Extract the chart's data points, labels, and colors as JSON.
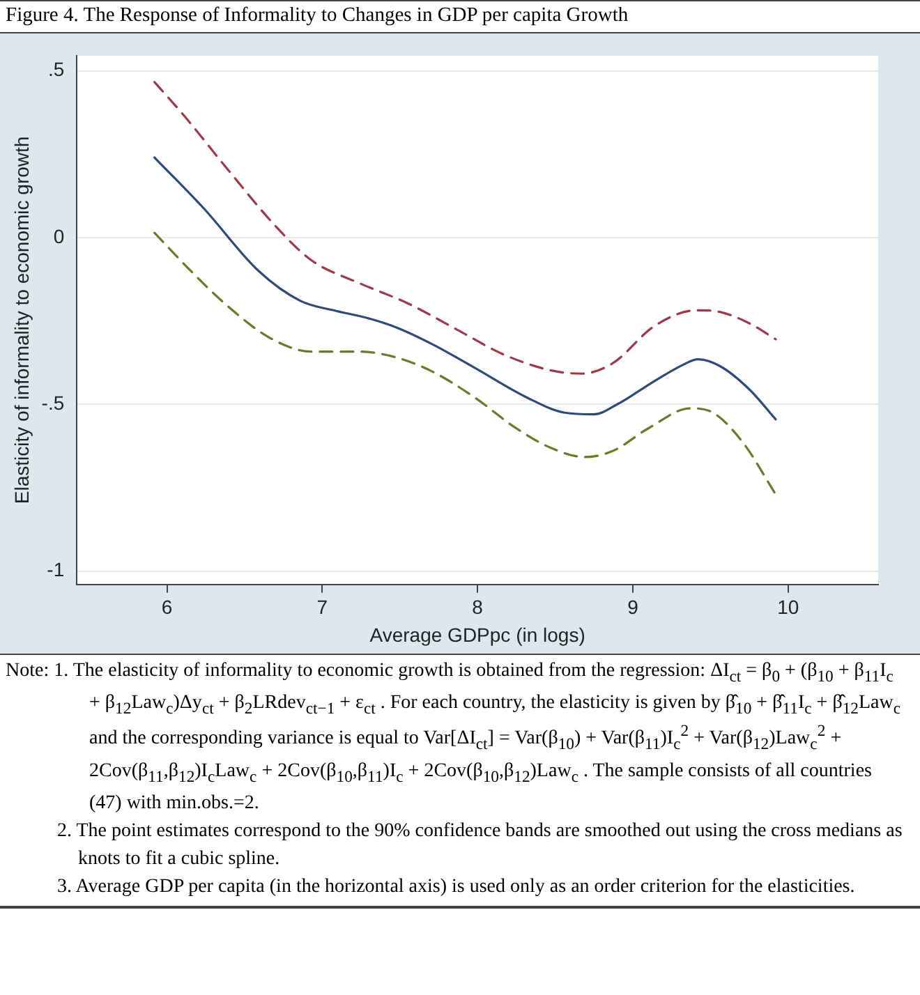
{
  "chart_data": {
    "type": "line",
    "title": "Figure 4. The Response of Informality to Changes in GDP per capita Growth",
    "xlabel": "Average GDPpc (in logs)",
    "ylabel": "Elasticity of informality to economic growth",
    "xlim": [
      5.42,
      10.58
    ],
    "xticks": [
      6,
      7,
      8,
      9,
      10
    ],
    "ylim": [
      -1.04,
      0.545
    ],
    "yticks": [
      -1,
      {
        "value": -0.5,
        "label": "-.5"
      },
      0,
      {
        "value": 0.5,
        "label": ".5"
      }
    ],
    "grid": "y",
    "marker": "none",
    "series": [
      {
        "color": "#9e3a48",
        "line_style": "dashed",
        "x": [
          5.92,
          6.12,
          6.39,
          6.7,
          6.93,
          7.24,
          7.55,
          7.86,
          8.17,
          8.48,
          8.67,
          8.87,
          9.14,
          9.41,
          9.56,
          9.75,
          9.92
        ],
        "values": [
          0.466,
          0.36,
          0.205,
          0.034,
          -0.068,
          -0.137,
          -0.197,
          -0.274,
          -0.351,
          -0.399,
          -0.408,
          -0.377,
          -0.265,
          -0.218,
          -0.223,
          -0.257,
          -0.305
        ]
      },
      {
        "color": "#2d4a78",
        "line_style": "solid",
        "x": [
          5.92,
          6.24,
          6.59,
          6.86,
          7.09,
          7.28,
          7.48,
          7.71,
          7.98,
          8.32,
          8.56,
          8.75,
          8.9,
          9.14,
          9.33,
          9.42,
          9.56,
          9.75,
          9.92
        ],
        "values": [
          0.24,
          0.086,
          -0.1,
          -0.19,
          -0.22,
          -0.24,
          -0.27,
          -0.32,
          -0.39,
          -0.48,
          -0.525,
          -0.53,
          -0.5,
          -0.43,
          -0.38,
          -0.365,
          -0.385,
          -0.455,
          -0.545
        ]
      },
      {
        "color": "#6b7a2a",
        "line_style": "dashed",
        "x": [
          5.92,
          6.16,
          6.39,
          6.66,
          6.93,
          7.24,
          7.48,
          7.71,
          7.98,
          8.25,
          8.48,
          8.69,
          8.87,
          9.1,
          9.37,
          9.52,
          9.71,
          9.92
        ],
        "values": [
          0.014,
          -0.103,
          -0.205,
          -0.3,
          -0.342,
          -0.342,
          -0.36,
          -0.402,
          -0.479,
          -0.572,
          -0.632,
          -0.658,
          -0.64,
          -0.572,
          -0.512,
          -0.526,
          -0.615,
          -0.77
        ]
      }
    ],
    "annotations": [
      "Note: 1. The elasticity of informality to economic growth is obtained from the regression: ΔI$_{ct}$ = β$_{0}$ + (β$_{10}$ + β$_{11}$I$_{c}$ + β$_{12}$Law$_{c}$)Δy$_{ct}$ + β$_{2}$LRdev$_{ct−1}$ + ε$_{ct}$ . For each country, the elasticity is given by β̂$_{10}$ + β̂$_{11}$I$_{c}$ + β̂$_{12}$Law$_{c}$ and the corresponding variance is equal to Var[ΔI$_{ct}$] = Var(β$_{10}$) + Var(β$_{11}$)I$_{c}$$^{2}$ + Var(β$_{12}$)Law$_{c}$$^{2}$ + 2Cov(β$_{11}$,β$_{12}$)I$_{c}$Law$_{c}$ + 2Cov(β$_{10}$,β$_{11}$)I$_{c}$ + 2Cov(β$_{10}$,β$_{12}$)Law$_{c}$ . The sample consists of all countries (47) with min.obs.=2.",
      "2. The point estimates correspond to the 90% confidence bands are smoothed out using the cross medians as knots to fit a cubic spline.",
      "3. Average GDP per capita (in the horizontal axis) is used only as an order criterion for the elasticities."
    ]
  }
}
